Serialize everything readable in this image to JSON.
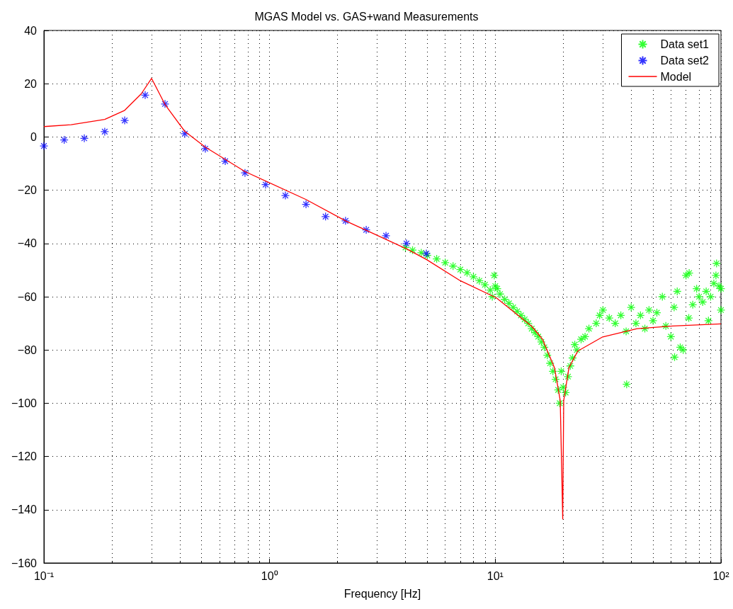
{
  "chart_data": {
    "type": "scatter",
    "title": "MGAS Model vs. GAS+wand Measurements",
    "xlabel": "Frequency [Hz]",
    "log": "x",
    "grid": true,
    "legend": "top right",
    "marker": "cross",
    "xlim": [
      0.1,
      100
    ],
    "xticks": [
      {
        "value": 0.1,
        "label": "10⁻¹"
      },
      {
        "value": 1,
        "label": "10⁰"
      },
      {
        "value": 10,
        "label": "10¹"
      },
      {
        "value": 100,
        "label": "10²"
      }
    ],
    "ylim": [
      -160,
      40
    ],
    "yticks": [
      -160,
      -140,
      -120,
      -100,
      -80,
      -60,
      -40,
      -20,
      0,
      20,
      40
    ],
    "series": [
      {
        "name": "Data set1",
        "color": "#00ff00",
        "x": [
          4.0,
          4.3,
          4.7,
          5.0,
          5.5,
          6,
          6.5,
          7,
          7.5,
          8,
          8.5,
          9,
          9.5,
          9.7,
          9.9,
          10,
          10.2,
          10.5,
          11,
          11.5,
          12,
          12.5,
          13,
          13.5,
          14,
          14.5,
          15,
          15.5,
          16,
          16.5,
          17,
          17.5,
          18,
          18.5,
          19,
          19.3,
          19.6,
          20,
          20.5,
          21,
          21.5,
          22,
          22.5,
          23,
          24,
          25,
          26,
          28,
          29,
          30,
          32,
          34,
          36,
          38,
          38.2,
          40,
          42,
          44,
          46,
          48,
          50,
          52,
          55,
          57,
          60,
          62,
          62.3,
          64,
          66,
          68,
          70,
          72,
          72.3,
          75,
          78,
          80,
          83,
          86,
          88,
          90,
          93,
          95,
          95.6,
          98,
          100,
          100
        ],
        "values": [
          -41.5,
          -42.5,
          -43.5,
          -44.5,
          -45.8,
          -47.2,
          -48.5,
          -49.8,
          -51,
          -52.5,
          -54,
          -55.5,
          -57.5,
          -60,
          -52,
          -56,
          -57,
          -59,
          -61,
          -62.5,
          -64,
          -65.5,
          -67,
          -68.5,
          -70,
          -72,
          -73.5,
          -75,
          -77,
          -79,
          -82,
          -85,
          -88,
          -91,
          -95,
          -100,
          -88,
          -94,
          -96,
          -90,
          -86,
          -83,
          -78,
          -80,
          -76,
          -75,
          -72,
          -70,
          -67,
          -65,
          -68,
          -70,
          -67,
          -73,
          -92.9,
          -64,
          -70,
          -67,
          -72,
          -65,
          -69,
          -66,
          -60,
          -71,
          -75,
          -64,
          -82.7,
          -58,
          -79,
          -80,
          -52,
          -68,
          -51.1,
          -63,
          -57,
          -60,
          -62,
          -58,
          -69,
          -60,
          -55,
          -52,
          -47.5,
          -56,
          -57,
          -65
        ]
      },
      {
        "name": "Data set2",
        "color": "#0000ff",
        "x": [
          0.1,
          0.123,
          0.151,
          0.186,
          0.228,
          0.281,
          0.344,
          0.421,
          0.519,
          0.636,
          0.778,
          0.96,
          1.175,
          1.45,
          1.77,
          2.17,
          2.68,
          3.28,
          4.04,
          4.95
        ],
        "values": [
          -3.4,
          -1.1,
          -0.5,
          2.0,
          6.2,
          15.7,
          12.4,
          1.2,
          -4.4,
          -9.1,
          -13.5,
          -17.9,
          -22.0,
          -25.3,
          -29.9,
          -31.5,
          -34.9,
          -37.1,
          -40.0,
          -43.8
        ]
      },
      {
        "name": "Model",
        "type": "line",
        "marker": "none",
        "line_style": "solid",
        "color": "#ff0000",
        "x": [
          0.1,
          0.132,
          0.186,
          0.228,
          0.27,
          0.3,
          0.344,
          0.421,
          0.519,
          0.778,
          1.45,
          2.17,
          4.04,
          4.95,
          7.0,
          10.1,
          14.5,
          16.2,
          18.3,
          19.4,
          19.9,
          20.1,
          21.2,
          23.2,
          29.9,
          42.5,
          61,
          100
        ],
        "values": [
          3.9,
          4.6,
          6.6,
          10,
          16.2,
          22.0,
          12.2,
          2.1,
          -3.8,
          -13.0,
          -23.5,
          -31.5,
          -42.0,
          -46.0,
          -54.0,
          -60.4,
          -71.1,
          -76,
          -86.7,
          -99,
          -143.5,
          -99,
          -86.7,
          -80.4,
          -75.1,
          -72,
          -71.0,
          -70.2
        ]
      }
    ]
  }
}
